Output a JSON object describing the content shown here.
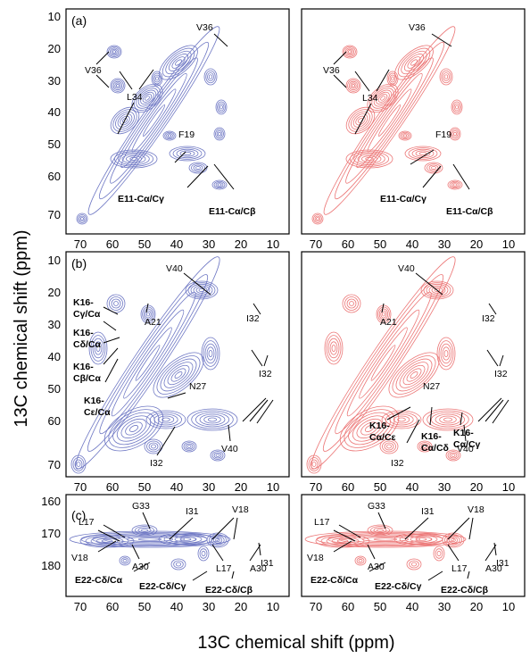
{
  "figure": {
    "x_axis_label": "13C chemical shift (ppm)",
    "y_axis_label": "13C chemical shift (ppm)",
    "x_ticks": [
      "70",
      "60",
      "50",
      "40",
      "30",
      "20",
      "10"
    ],
    "colors": {
      "blue": "#6f78c4",
      "red": "#ec7777",
      "frame": "#000000"
    },
    "rows": [
      {
        "panel_label": "(a)",
        "y_ticks": [
          "10",
          "20",
          "30",
          "40",
          "50",
          "60",
          "70"
        ],
        "labels": [
          "V36",
          "V36",
          "L34",
          "F19",
          "E11-Cα/Cγ",
          "E11-Cα/Cβ"
        ]
      },
      {
        "panel_label": "(b)",
        "y_ticks": [
          "10",
          "20",
          "30",
          "40",
          "50",
          "60",
          "70"
        ],
        "labels_left": [
          "V40",
          "K16-",
          "Cγ/Cα",
          "A21",
          "K16-",
          "Cδ/Cα",
          "K16-",
          "Cβ/Cα",
          "K16-",
          "Cε/Cα",
          "N27",
          "I32",
          "I32",
          "I32",
          "V40"
        ],
        "labels_right": [
          "V40",
          "A21",
          "I32",
          "I32",
          "N27",
          "K16-",
          "Cα/Cε",
          "K16-",
          "Cα/Cδ",
          "K16-",
          "Cα/Cγ",
          "I32",
          "V40"
        ]
      },
      {
        "panel_label": "(c)",
        "y_ticks": [
          "160",
          "170",
          "180"
        ],
        "labels_left": [
          "G33",
          "L17",
          "I31",
          "V18",
          "V18",
          "A30",
          "L17",
          "I31",
          "E22-Cδ/Cα",
          "E22-Cδ/Cγ",
          "A30",
          "E22-Cδ/Cβ"
        ],
        "labels_right": [
          "G33",
          "L17",
          "I31",
          "V18",
          "V18",
          "A30",
          "L17",
          "I31",
          "E22-Cδ/Cα",
          "E22-Cδ/Cγ",
          "A30",
          "E22-Cδ/Cβ"
        ]
      }
    ]
  }
}
